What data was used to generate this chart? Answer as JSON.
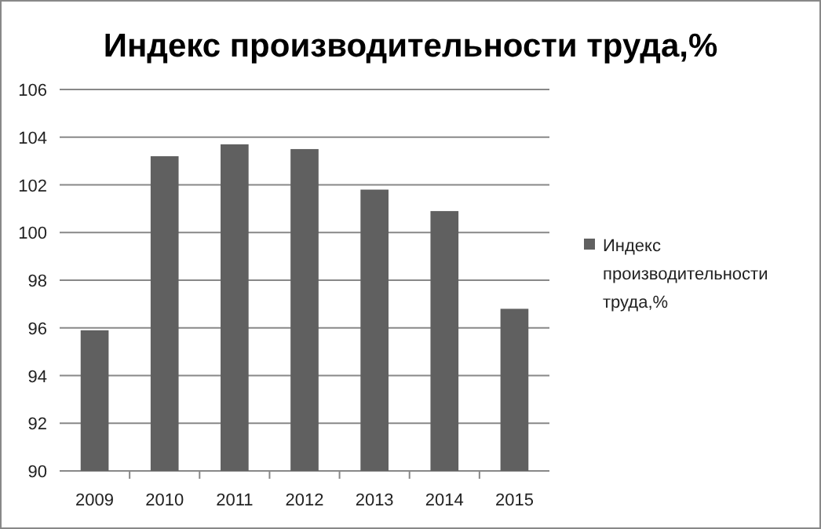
{
  "chart_data": {
    "type": "bar",
    "title": "Индекс производительности труда,%",
    "categories": [
      "2009",
      "2010",
      "2011",
      "2012",
      "2013",
      "2014",
      "2015"
    ],
    "series": [
      {
        "name": "Индекс производительности труда,%",
        "color": "#606060",
        "values": [
          95.9,
          103.2,
          103.7,
          103.5,
          101.8,
          100.9,
          96.8
        ]
      }
    ],
    "ylim": [
      90,
      106
    ],
    "yticks": [
      90,
      92,
      94,
      96,
      98,
      100,
      102,
      104,
      106
    ],
    "grid": "y",
    "legend": "right"
  }
}
